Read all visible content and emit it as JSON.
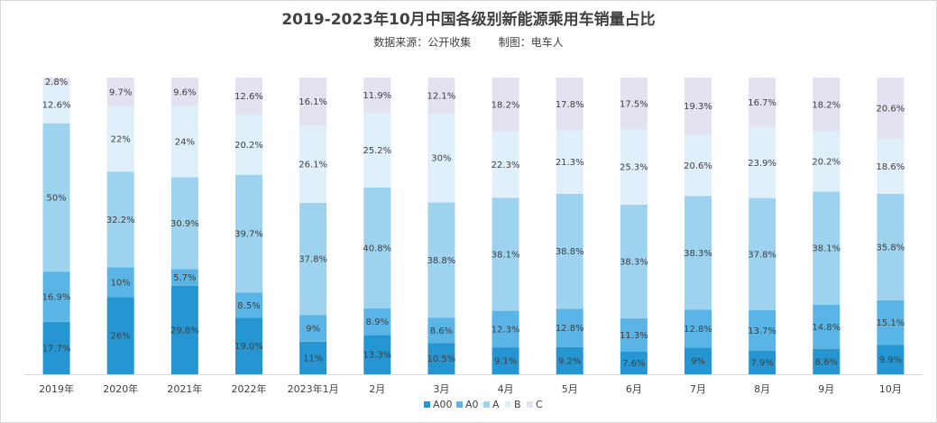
{
  "title": "2019-2023年10月中国各级别新能源乘用车销量占比",
  "subtitle": {
    "source": "数据来源：公开收集",
    "maker": "制图：电车人"
  },
  "chart_data": {
    "type": "bar",
    "stacked": true,
    "percent": true,
    "title": "2019-2023年10月中国各级别新能源乘用车销量占比",
    "xlabel": "",
    "ylabel": "",
    "ylim": [
      0,
      100
    ],
    "legend_position": "bottom",
    "categories": [
      "2019年",
      "2020年",
      "2021年",
      "2022年",
      "2023年1月",
      "2月",
      "3月",
      "4月",
      "5月",
      "6月",
      "7月",
      "8月",
      "9月",
      "10月"
    ],
    "series": [
      {
        "name": "A00",
        "color": "#2596d1",
        "values": [
          17.7,
          26,
          29.8,
          19.0,
          11,
          13.3,
          10.5,
          9.1,
          9.2,
          7.6,
          9,
          7.9,
          8.6,
          9.9
        ],
        "labels": [
          "17.7%",
          "26%",
          "29.8%",
          "19.0%",
          "11%",
          "13.3%",
          "10.5%",
          "9.1%",
          "9.2%",
          "7.6%",
          "9%",
          "7.9%",
          "8.6%",
          "9.9%"
        ]
      },
      {
        "name": "A0",
        "color": "#5ab4e6",
        "values": [
          16.9,
          10,
          5.7,
          8.5,
          9,
          8.9,
          8.6,
          12.3,
          12.8,
          11.3,
          12.8,
          13.7,
          14.8,
          15.1
        ],
        "labels": [
          "16.9%",
          "10%",
          "5.7%",
          "8.5%",
          "9%",
          "8.9%",
          "8.6%",
          "12.3%",
          "12.8%",
          "11.3%",
          "12.8%",
          "13.7%",
          "14.8%",
          "15.1%"
        ]
      },
      {
        "name": "A",
        "color": "#9dd3ef",
        "values": [
          50,
          32.2,
          30.9,
          39.7,
          37.8,
          40.8,
          38.8,
          38.1,
          38.8,
          38.3,
          38.3,
          37.8,
          38.1,
          35.8
        ],
        "labels": [
          "50%",
          "32.2%",
          "30.9%",
          "39.7%",
          "37.8%",
          "40.8%",
          "38.8%",
          "38.1%",
          "38.8%",
          "38.3%",
          "38.3%",
          "37.8%",
          "38.1%",
          "35.8%"
        ]
      },
      {
        "name": "B",
        "color": "#dff0fa",
        "values": [
          12.6,
          22,
          24,
          20.2,
          26.1,
          25.2,
          30,
          22.3,
          21.3,
          25.3,
          20.6,
          23.9,
          20.2,
          18.6
        ],
        "labels": [
          "12.6%",
          "22%",
          "24%",
          "20.2%",
          "26.1%",
          "25.2%",
          "30%",
          "22.3%",
          "21.3%",
          "25.3%",
          "20.6%",
          "23.9%",
          "20.2%",
          "18.6%"
        ]
      },
      {
        "name": "C",
        "color": "#e2e2f1",
        "values": [
          2.8,
          9.7,
          9.6,
          12.6,
          16.1,
          11.9,
          12.1,
          18.2,
          17.8,
          17.5,
          19.3,
          16.7,
          18.2,
          20.6
        ],
        "labels": [
          "2.8%",
          "9.7%",
          "9.6%",
          "12.6%",
          "16.1%",
          "11.9%",
          "12.1%",
          "18.2%",
          "17.8%",
          "17.5%",
          "19.3%",
          "16.7%",
          "18.2%",
          "20.6%"
        ]
      }
    ]
  }
}
